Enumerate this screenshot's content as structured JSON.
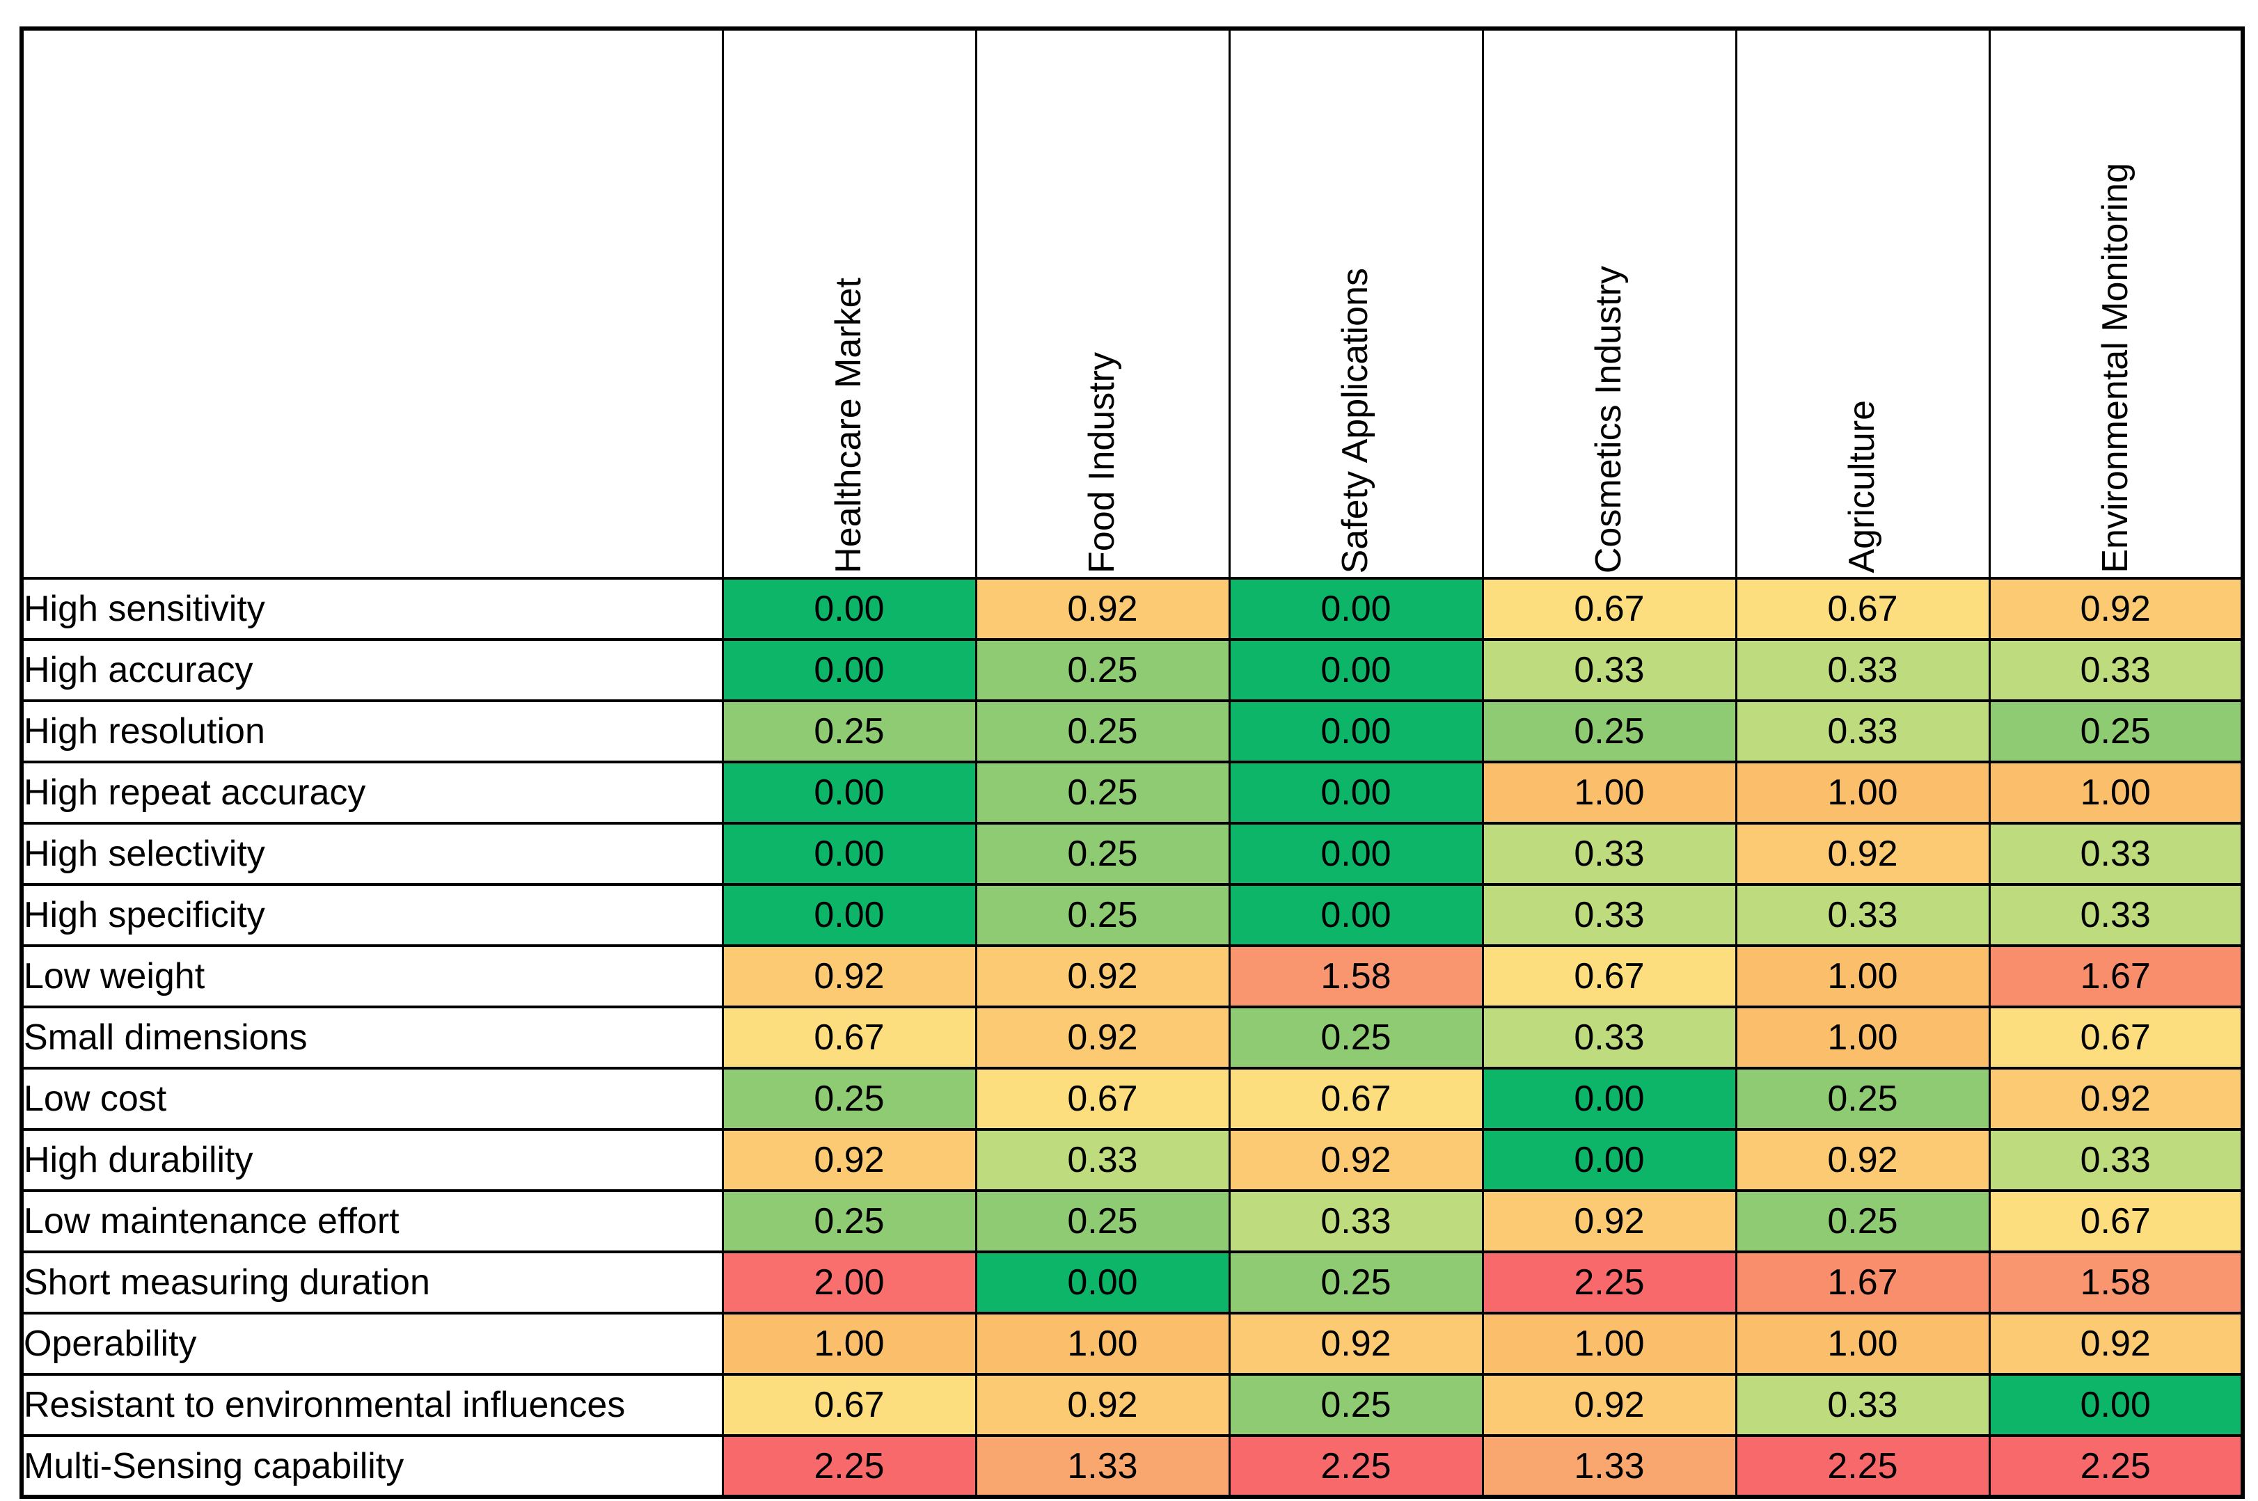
{
  "chart_data": {
    "type": "heatmap",
    "columns": [
      "Healthcare Market",
      "Food Industry",
      "Safety Applications",
      "Cosmetics Industry",
      "Agriculture",
      "Environmental Monitoring"
    ],
    "rows": [
      "High sensitivity",
      "High accuracy",
      "High resolution",
      "High repeat accuracy",
      "High selectivity",
      "High specificity",
      "Low weight",
      "Small dimensions",
      "Low cost",
      "High durability",
      "Low maintenance effort",
      "Short measuring duration",
      "Operability",
      "Resistant to environmental influences",
      "Multi-Sensing capability"
    ],
    "values": [
      [
        0.0,
        0.92,
        0.0,
        0.67,
        0.67,
        0.92
      ],
      [
        0.0,
        0.25,
        0.0,
        0.33,
        0.33,
        0.33
      ],
      [
        0.25,
        0.25,
        0.0,
        0.25,
        0.33,
        0.25
      ],
      [
        0.0,
        0.25,
        0.0,
        1.0,
        1.0,
        1.0
      ],
      [
        0.0,
        0.25,
        0.0,
        0.33,
        0.92,
        0.33
      ],
      [
        0.0,
        0.25,
        0.0,
        0.33,
        0.33,
        0.33
      ],
      [
        0.92,
        0.92,
        1.58,
        0.67,
        1.0,
        1.67
      ],
      [
        0.67,
        0.92,
        0.25,
        0.33,
        1.0,
        0.67
      ],
      [
        0.25,
        0.67,
        0.67,
        0.0,
        0.25,
        0.92
      ],
      [
        0.92,
        0.33,
        0.92,
        0.0,
        0.92,
        0.33
      ],
      [
        0.25,
        0.25,
        0.33,
        0.92,
        0.25,
        0.67
      ],
      [
        2.0,
        0.0,
        0.25,
        2.25,
        1.67,
        1.58
      ],
      [
        1.0,
        1.0,
        0.92,
        1.0,
        1.0,
        0.92
      ],
      [
        0.67,
        0.92,
        0.25,
        0.92,
        0.33,
        0.0
      ],
      [
        2.25,
        1.33,
        2.25,
        1.33,
        2.25,
        2.25
      ]
    ],
    "value_format": "0.00",
    "color_scale": {
      "0.00": "#0DB569",
      "0.25": "#8ECB72",
      "0.33": "#BEDC7E",
      "0.67": "#FDDE7E",
      "0.92": "#FCCA72",
      "1.00": "#FBBF6C",
      "1.33": "#FAA76F",
      "1.58": "#F99670",
      "1.67": "#F98E6D",
      "2.00": "#F86F6D",
      "2.25": "#F8696B"
    },
    "text_color": "#000000",
    "border_color": "#000000",
    "background_color": "#FFFFFF",
    "legend_position": "none",
    "grid": true
  }
}
